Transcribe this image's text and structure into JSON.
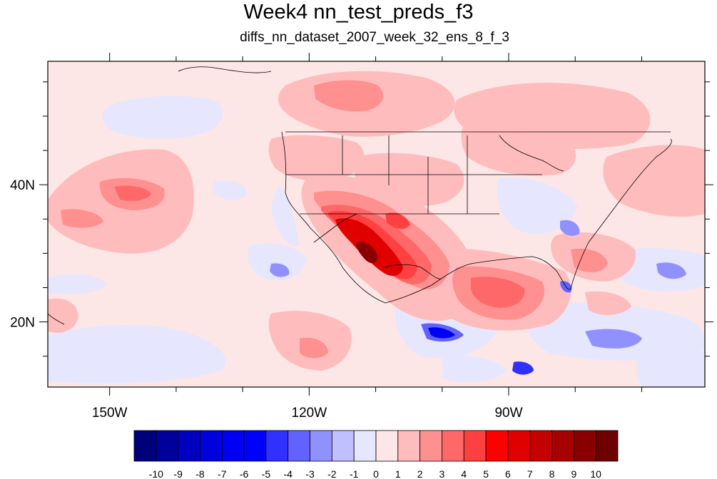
{
  "figure": {
    "title": "Week4 nn_test_preds_f3",
    "subtitle": "diffs_nn_dataset_2007_week_32_ens_8_f_3"
  },
  "map": {
    "projection": "cylindrical-equidistant",
    "lon_range": [
      -159.3,
      -60.5
    ],
    "lat_range": [
      10.5,
      58.0
    ],
    "lon_ticks": [
      {
        "value": -150,
        "label": "150W"
      },
      {
        "value": -120,
        "label": "120W"
      },
      {
        "value": -90,
        "label": "90W"
      }
    ],
    "lat_ticks": [
      {
        "value": 20,
        "label": "20N"
      },
      {
        "value": 40,
        "label": "40N"
      }
    ],
    "background_color": "#fde6e6"
  },
  "colorbar": {
    "levels": [
      "-10",
      "-9",
      "-8",
      "-7",
      "-6",
      "-5",
      "-4",
      "-3",
      "-2",
      "-1",
      "0",
      "1",
      "2",
      "3",
      "4",
      "5",
      "6",
      "7",
      "8",
      "9",
      "10"
    ],
    "colors": [
      "#00007a",
      "#00009a",
      "#0000c0",
      "#0000dc",
      "#0000f2",
      "#0000ff",
      "#3030ff",
      "#6262ff",
      "#9090ff",
      "#c0c0ff",
      "#e6e6ff",
      "#fde6e6",
      "#ffbcbc",
      "#ff9090",
      "#ff6868",
      "#ff4040",
      "#ff0000",
      "#e00000",
      "#c40000",
      "#a60000",
      "#8a0000",
      "#6e0000"
    ]
  }
}
